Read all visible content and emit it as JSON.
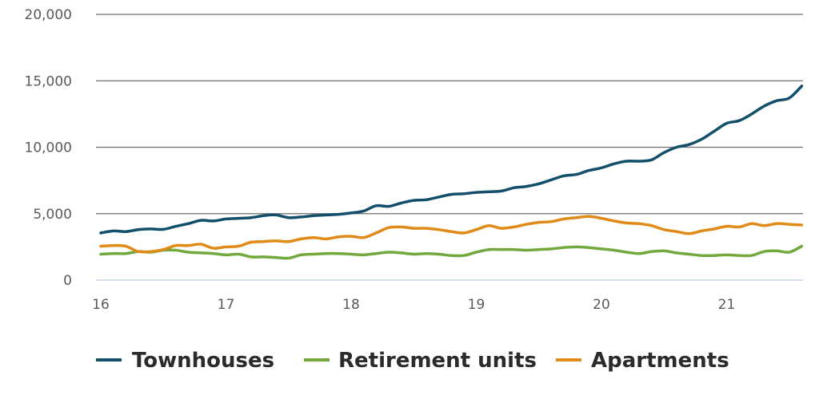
{
  "chart_data": {
    "type": "line",
    "title": "",
    "xlabel": "",
    "ylabel": "",
    "x_ticks": [
      "16",
      "17",
      "18",
      "19",
      "20",
      "21"
    ],
    "y_ticks": [
      "0",
      "5,000",
      "10,000",
      "15,000",
      "20,000"
    ],
    "xlim": [
      16,
      21.65
    ],
    "ylim": [
      0,
      20000
    ],
    "grid": "horizontal",
    "legend_position": "bottom",
    "x": [
      16.0,
      16.1,
      16.2,
      16.3,
      16.4,
      16.5,
      16.6,
      16.7,
      16.8,
      16.9,
      17.0,
      17.1,
      17.2,
      17.3,
      17.4,
      17.5,
      17.6,
      17.7,
      17.8,
      17.9,
      18.0,
      18.1,
      18.2,
      18.3,
      18.4,
      18.5,
      18.6,
      18.7,
      18.8,
      18.9,
      19.0,
      19.1,
      19.2,
      19.3,
      19.4,
      19.5,
      19.6,
      19.7,
      19.8,
      19.9,
      20.0,
      20.1,
      20.2,
      20.3,
      20.4,
      20.5,
      20.6,
      20.7,
      20.8,
      20.9,
      21.0,
      21.1,
      21.2,
      21.3,
      21.4,
      21.5,
      21.6
    ],
    "series": [
      {
        "name": "Townhouses",
        "color": "#134f6a",
        "values": [
          3550,
          3700,
          3650,
          3800,
          3850,
          3820,
          4050,
          4250,
          4500,
          4450,
          4600,
          4650,
          4700,
          4850,
          4900,
          4700,
          4750,
          4850,
          4900,
          4950,
          5050,
          5200,
          5600,
          5550,
          5800,
          6000,
          6050,
          6250,
          6450,
          6500,
          6600,
          6650,
          6700,
          6950,
          7050,
          7250,
          7550,
          7850,
          7950,
          8250,
          8450,
          8750,
          8950,
          8950,
          9050,
          9600,
          10000,
          10200,
          10600,
          11200,
          11800,
          12000,
          12500,
          13100,
          13500,
          13700,
          14600
        ]
      },
      {
        "name": "Retirement units",
        "color": "#72a83c",
        "values": [
          1950,
          2000,
          2000,
          2150,
          2100,
          2250,
          2250,
          2100,
          2050,
          2000,
          1900,
          1950,
          1750,
          1750,
          1700,
          1650,
          1900,
          1950,
          2000,
          2000,
          1950,
          1900,
          2000,
          2100,
          2050,
          1950,
          2000,
          1950,
          1850,
          1850,
          2100,
          2300,
          2300,
          2300,
          2250,
          2300,
          2350,
          2450,
          2500,
          2450,
          2350,
          2250,
          2100,
          2000,
          2150,
          2200,
          2050,
          1950,
          1850,
          1850,
          1900,
          1850,
          1850,
          2150,
          2200,
          2100,
          2550
        ]
      },
      {
        "name": "Apartments",
        "color": "#e08a17",
        "values": [
          2550,
          2600,
          2550,
          2150,
          2150,
          2300,
          2600,
          2600,
          2700,
          2400,
          2500,
          2550,
          2850,
          2900,
          2950,
          2900,
          3100,
          3200,
          3100,
          3250,
          3300,
          3200,
          3550,
          3950,
          4000,
          3900,
          3900,
          3800,
          3650,
          3550,
          3800,
          4100,
          3900,
          4000,
          4200,
          4350,
          4400,
          4600,
          4700,
          4800,
          4650,
          4450,
          4300,
          4250,
          4100,
          3800,
          3650,
          3500,
          3700,
          3850,
          4050,
          4000,
          4250,
          4100,
          4250,
          4200,
          4150
        ]
      }
    ]
  }
}
